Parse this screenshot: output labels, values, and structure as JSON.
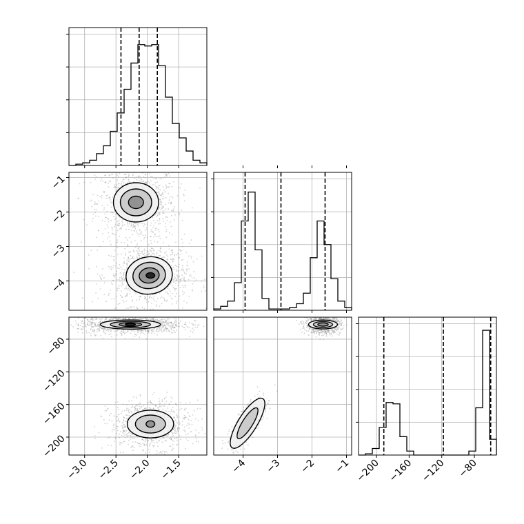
{
  "chart_data": {
    "type": "corner",
    "colors": {
      "ink": "#000000",
      "grid": "#b0b0b0",
      "scatter": "#9a9a9a",
      "fill_low": "#f2f2f2",
      "fill_mid": "#c8c8c8",
      "fill_high": "#8c8c8c",
      "fill_peak": "#1a1a1a"
    },
    "grid": true,
    "parameters": [
      {
        "range": [
          -3.25,
          -1.05
        ],
        "ticks": [
          {
            "v": -3.0,
            "label": "−3.0"
          },
          {
            "v": -2.5,
            "label": "−2.5"
          },
          {
            "v": -2.0,
            "label": "−2.0"
          },
          {
            "v": -1.5,
            "label": "−1.5"
          }
        ],
        "quantiles": [
          -2.42,
          -2.13,
          -1.84
        ],
        "hist_max": 1.0,
        "hist_y_ticks": [
          0.25,
          0.5,
          0.75,
          1.0
        ],
        "hist": {
          "edges": [
            -3.25,
            -3.14,
            -3.03,
            -2.92,
            -2.81,
            -2.7,
            -2.59,
            -2.48,
            -2.37,
            -2.26,
            -2.15,
            -2.04,
            -1.93,
            -1.82,
            -1.71,
            -1.6,
            -1.49,
            -1.38,
            -1.27,
            -1.16,
            -1.05
          ],
          "counts": [
            0,
            0.01,
            0.02,
            0.04,
            0.09,
            0.15,
            0.26,
            0.4,
            0.58,
            0.78,
            0.92,
            0.91,
            0.92,
            0.76,
            0.52,
            0.32,
            0.21,
            0.11,
            0.04,
            0.02
          ]
        }
      },
      {
        "range": [
          -4.85,
          -0.85
        ],
        "ticks": [
          {
            "v": -4,
            "label": "−4"
          },
          {
            "v": -3,
            "label": "−3"
          },
          {
            "v": -2,
            "label": "−2"
          },
          {
            "v": -1,
            "label": "−1"
          }
        ],
        "quantiles": [
          -3.94,
          -2.9,
          -1.62
        ],
        "hist_max": 1.0,
        "hist_y_ticks": [
          0.25,
          0.5,
          0.75,
          1.0
        ],
        "hist": {
          "edges": [
            -4.85,
            -4.65,
            -4.45,
            -4.25,
            -4.05,
            -3.85,
            -3.65,
            -3.45,
            -3.25,
            -3.05,
            -2.85,
            -2.65,
            -2.45,
            -2.25,
            -2.05,
            -1.85,
            -1.65,
            -1.45,
            -1.25,
            -1.05,
            -0.85
          ],
          "counts": [
            0.01,
            0.03,
            0.07,
            0.21,
            0.68,
            0.9,
            0.46,
            0.09,
            0.01,
            0.01,
            0.01,
            0.02,
            0.05,
            0.13,
            0.4,
            0.68,
            0.5,
            0.24,
            0.07,
            0.02
          ]
        }
      },
      {
        "range": [
          -222,
          -53
        ],
        "ticks": [
          {
            "v": -200,
            "label": "−200"
          },
          {
            "v": -160,
            "label": "−160"
          },
          {
            "v": -120,
            "label": "−120"
          },
          {
            "v": -80,
            "label": "−80"
          }
        ],
        "quantiles": [
          -191,
          -118,
          -60
        ],
        "hist_max": 1.0,
        "hist_y_ticks": [
          0.25,
          0.5,
          0.75,
          1.0
        ],
        "hist": {
          "edges": [
            -222,
            -213.55,
            -205.1,
            -196.65,
            -188.2,
            -179.75,
            -171.3,
            -162.85,
            -154.4,
            -145.95,
            -137.5,
            -129.05,
            -120.6,
            -112.15,
            -103.7,
            -95.25,
            -86.8,
            -78.35,
            -69.9,
            -61.45,
            -53
          ],
          "counts": [
            0,
            0.01,
            0.05,
            0.21,
            0.4,
            0.39,
            0.14,
            0.03,
            0,
            0,
            0,
            0,
            0,
            0,
            0,
            0,
            0.03,
            0.36,
            0.95,
            0.12
          ]
        }
      }
    ],
    "pairs": [
      {
        "row": 1,
        "col": 0,
        "blobs": [
          {
            "cx": -2.17,
            "cy": -1.73,
            "sx": 0.2,
            "sy": 0.34,
            "n": 900
          },
          {
            "cx": -1.97,
            "cy": -3.82,
            "sx": 0.2,
            "sy": 0.28,
            "n": 1000
          }
        ],
        "contours": [
          {
            "cx": -2.18,
            "cy": -1.72,
            "rx": 0.36,
            "ry": 0.57,
            "rot": 0,
            "level": 1
          },
          {
            "cx": -2.18,
            "cy": -1.72,
            "rx": 0.25,
            "ry": 0.39,
            "rot": 0,
            "level": 2
          },
          {
            "cx": -2.18,
            "cy": -1.72,
            "rx": 0.12,
            "ry": 0.18,
            "rot": 0,
            "level": 3
          },
          {
            "cx": -1.97,
            "cy": -3.84,
            "rx": 0.37,
            "ry": 0.54,
            "rot": -8,
            "level": 1
          },
          {
            "cx": -1.97,
            "cy": -3.84,
            "rx": 0.26,
            "ry": 0.38,
            "rot": -8,
            "level": 2
          },
          {
            "cx": -1.97,
            "cy": -3.84,
            "rx": 0.16,
            "ry": 0.22,
            "rot": -8,
            "level": 3
          },
          {
            "cx": -1.95,
            "cy": -3.84,
            "rx": 0.07,
            "ry": 0.08,
            "rot": 0,
            "level": 4
          }
        ]
      },
      {
        "row": 2,
        "col": 0,
        "blobs": [
          {
            "cx": -2.27,
            "cy": -62,
            "sx": 0.26,
            "sy": 3.6,
            "n": 1100
          },
          {
            "cx": -1.95,
            "cy": -185,
            "sx": 0.2,
            "sy": 9,
            "n": 900
          }
        ],
        "contours": [
          {
            "cx": -2.27,
            "cy": -62,
            "rx": 0.48,
            "ry": 5.6,
            "rot": 0,
            "level": 1
          },
          {
            "cx": -2.27,
            "cy": -62,
            "rx": 0.32,
            "ry": 3.9,
            "rot": 0,
            "level": 2
          },
          {
            "cx": -2.27,
            "cy": -62,
            "rx": 0.18,
            "ry": 2.4,
            "rot": 0,
            "level": 3
          },
          {
            "cx": -2.27,
            "cy": -62,
            "rx": 0.08,
            "ry": 1.3,
            "rot": 0,
            "level": 4
          },
          {
            "cx": -1.95,
            "cy": -184,
            "rx": 0.37,
            "ry": 17,
            "rot": 0,
            "level": 1
          },
          {
            "cx": -1.95,
            "cy": -184,
            "rx": 0.24,
            "ry": 11,
            "rot": 0,
            "level": 2
          },
          {
            "cx": -1.95,
            "cy": -184,
            "rx": 0.07,
            "ry": 4,
            "rot": 0,
            "level": 3
          }
        ]
      },
      {
        "row": 2,
        "col": 1,
        "blobs": [
          {
            "cx": -1.68,
            "cy": -62,
            "sx": 0.16,
            "sy": 3.4,
            "n": 900
          },
          {
            "cx": -3.87,
            "cy": -183,
            "sx": 0.15,
            "sy": 9,
            "n": 800,
            "corr": 0.75
          }
        ],
        "contours": [
          {
            "cx": -1.68,
            "cy": -62,
            "rx": 0.42,
            "ry": 5.4,
            "rot": 0,
            "level": 1
          },
          {
            "cx": -1.68,
            "cy": -62,
            "rx": 0.28,
            "ry": 3.6,
            "rot": 0,
            "level": 2
          },
          {
            "cx": -1.68,
            "cy": -62,
            "rx": 0.15,
            "ry": 2.0,
            "rot": 0,
            "level": 3
          },
          {
            "cx": -3.87,
            "cy": -183,
            "rx": 0.62,
            "ry": 0.2,
            "rot": -58,
            "level": 1,
            "px": 42
          },
          {
            "cx": -3.87,
            "cy": -183,
            "rx": 0.42,
            "ry": 0.12,
            "rot": -58,
            "level": 2,
            "px": 26
          }
        ]
      }
    ]
  }
}
